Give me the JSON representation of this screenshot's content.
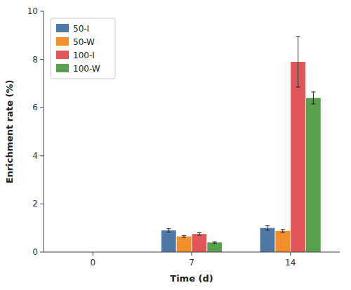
{
  "chart_data": {
    "type": "bar",
    "xlabel": "Time (d)",
    "ylabel": "Enrichment rate (%)",
    "categories": [
      "0",
      "7",
      "14"
    ],
    "series": [
      {
        "name": "50-I",
        "color": "#4e79a7",
        "values": [
          0,
          0.9,
          1.0
        ],
        "errors": [
          0,
          0.07,
          0.09
        ]
      },
      {
        "name": "50-W",
        "color": "#f28e2b",
        "values": [
          0,
          0.65,
          0.88
        ],
        "errors": [
          0,
          0.04,
          0.06
        ]
      },
      {
        "name": "100-I",
        "color": "#e15759",
        "values": [
          0,
          0.75,
          7.9
        ],
        "errors": [
          0,
          0.05,
          1.05
        ]
      },
      {
        "name": "100-W",
        "color": "#59a14f",
        "values": [
          0,
          0.4,
          6.4
        ],
        "errors": [
          0,
          0.03,
          0.25
        ]
      }
    ],
    "ylim": [
      0,
      10
    ],
    "yticks": [
      0,
      2,
      4,
      6,
      8,
      10
    ],
    "grid": false,
    "legend": "upper left"
  }
}
